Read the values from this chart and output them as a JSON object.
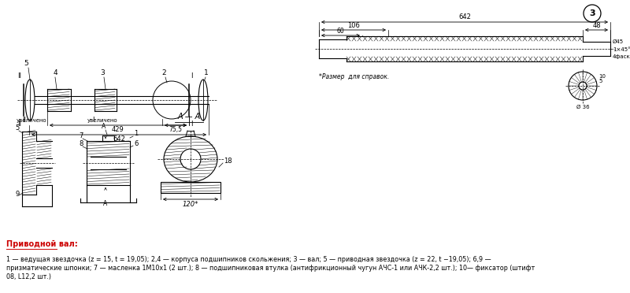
{
  "bg_color": "#ffffff",
  "line_color": "#000000",
  "heading_text": "Приводной вал:",
  "description_line1": "1 — ведущая звездочка (z = 15, t = 19,05); 2,4 — корпуса подшипников скольжения; 3 — вал; 5 — приводная звездочка (z = 22, t −19,05); 6,9 —",
  "description_line2": "призматические шпонки; 7 — масленка 1М10х1 (2 шт.); 8 — подшипниковая втулка (антифрикционный чугун АЧС-1 или АЧК-2,2 шт.); 10— фиксатор (штифт",
  "description_line3": "08, L12,2 шт.)"
}
